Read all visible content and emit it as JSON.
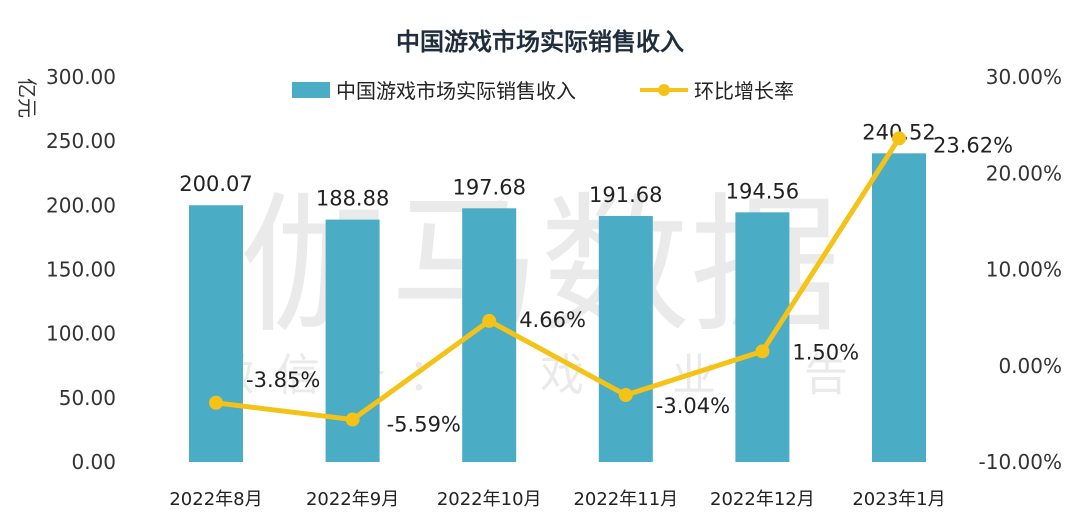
{
  "chart_data": {
    "type": "bar",
    "title": "中国游戏市场实际销售收入",
    "ylabel": "亿元",
    "categories": [
      "2022年8月",
      "2022年9月",
      "2022年10月",
      "2022年11月",
      "2022年12月",
      "2023年1月"
    ],
    "ylim": [
      0,
      300
    ],
    "yticks": [
      "0.00",
      "50.00",
      "100.00",
      "150.00",
      "200.00",
      "250.00",
      "300.00"
    ],
    "y2lim": [
      -10,
      30
    ],
    "y2ticks": [
      "-10.00%",
      "0.00%",
      "10.00%",
      "20.00%",
      "30.00%"
    ],
    "series": [
      {
        "name": "中国游戏市场实际销售收入",
        "type": "bar",
        "axis": "left",
        "color": "#4bacc6",
        "values": [
          200.07,
          188.88,
          197.68,
          191.68,
          194.56,
          240.52
        ],
        "labels": [
          "200.07",
          "188.88",
          "197.68",
          "191.68",
          "194.56",
          "240.52"
        ]
      },
      {
        "name": "环比增长率",
        "type": "line",
        "axis": "right",
        "color": "#f5c218",
        "values": [
          -3.85,
          -5.59,
          4.66,
          -3.04,
          1.5,
          23.62
        ],
        "labels": [
          "-3.85%",
          "-5.59%",
          "4.66%",
          "-3.04%",
          "1.50%",
          "23.62%"
        ]
      }
    ],
    "legend": "top",
    "grid": false,
    "watermark": [
      "伽马数据",
      "微信号：游戏产业报告"
    ]
  }
}
